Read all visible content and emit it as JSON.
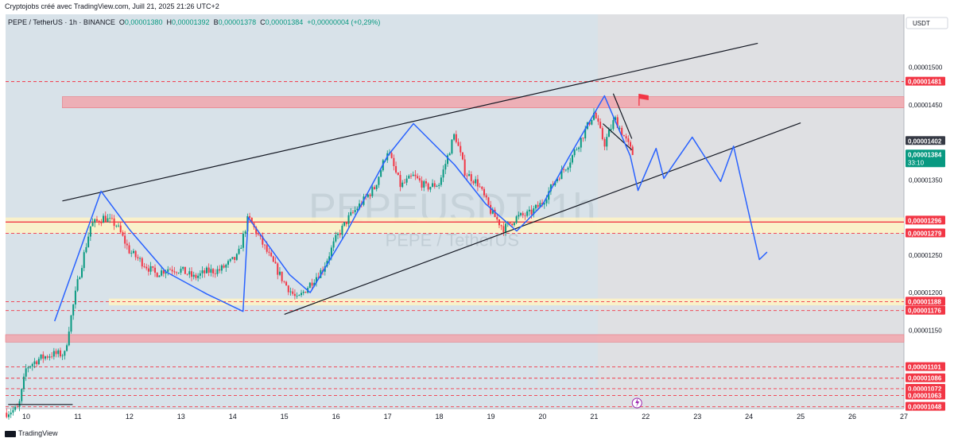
{
  "header": {
    "attribution": "Cryptojobs créé avec TradingView.com, Juill 21, 2025 21:26 UTC+2",
    "symbol": "PEPE / TetherUS · 1h · BINANCE",
    "o_label": "O",
    "o_value": "0,00001380",
    "h_label": "H",
    "h_value": "0,00001392",
    "b_label": "B",
    "b_value": "0,00001378",
    "c_label": "C",
    "c_value": "0,00001384",
    "change": "+0,00000004 (+0,29%)"
  },
  "footer": {
    "brand": "TradingView"
  },
  "colors": {
    "up": "#089981",
    "down": "#f23645",
    "pattern": "#2962ff",
    "trend": "#131722",
    "red_zone": "#f2a3a9",
    "yellow_zone": "#fff3c4",
    "history_shade": "#d8e2e9",
    "level_line": "#f23645"
  },
  "chart_data": {
    "type": "candlestick",
    "title": "",
    "watermark_ticker": "PEPEUSDT, 1h",
    "watermark_name": "PEPE / TetherUS",
    "currency_button": "USDT",
    "ylim": [
      1.0455e-05,
      1.5706e-05
    ],
    "xlim": [
      9.6,
      27.0
    ],
    "grid": false,
    "x_ticks": [
      {
        "value": 10,
        "label": "10"
      },
      {
        "value": 11,
        "label": "11"
      },
      {
        "value": 12,
        "label": "12"
      },
      {
        "value": 13,
        "label": "13"
      },
      {
        "value": 14,
        "label": "14"
      },
      {
        "value": 15,
        "label": "15"
      },
      {
        "value": 16,
        "label": "16"
      },
      {
        "value": 17,
        "label": "17"
      },
      {
        "value": 18,
        "label": "18"
      },
      {
        "value": 19,
        "label": "19"
      },
      {
        "value": 20,
        "label": "20"
      },
      {
        "value": 21,
        "label": "21"
      },
      {
        "value": 22,
        "label": "22"
      },
      {
        "value": 23,
        "label": "23"
      },
      {
        "value": 24,
        "label": "24"
      },
      {
        "value": 25,
        "label": "25"
      },
      {
        "value": 26,
        "label": "26"
      },
      {
        "value": 27,
        "label": "27"
      }
    ],
    "y_ticks": [
      {
        "value": 1.5e-05,
        "label": "0,00001500"
      },
      {
        "value": 1.45e-05,
        "label": "0,00001450"
      },
      {
        "value": 1.35e-05,
        "label": "0,00001350"
      },
      {
        "value": 1.25e-05,
        "label": "0,00001250"
      },
      {
        "value": 1.2e-05,
        "label": "0,00001200"
      },
      {
        "value": 1.15e-05,
        "label": "0,00001150"
      }
    ],
    "price_labels": [
      {
        "value": 1.481e-05,
        "label": "0,00001481",
        "kind": "level"
      },
      {
        "value": 1.402e-05,
        "label": "0,00001402",
        "kind": "dark"
      },
      {
        "value": 1.384e-05,
        "label": "0,00001384",
        "sub": "33:10",
        "kind": "last"
      },
      {
        "value": 1.296e-05,
        "label": "0,00001296",
        "kind": "level"
      },
      {
        "value": 1.279e-05,
        "label": "0,00001279",
        "kind": "level"
      },
      {
        "value": 1.188e-05,
        "label": "0,00001188",
        "kind": "level"
      },
      {
        "value": 1.176e-05,
        "label": "0,00001176",
        "kind": "level"
      },
      {
        "value": 1.101e-05,
        "label": "0,00001101",
        "kind": "level"
      },
      {
        "value": 1.086e-05,
        "label": "0,00001086",
        "kind": "level"
      },
      {
        "value": 1.072e-05,
        "label": "0,00001072",
        "kind": "level"
      },
      {
        "value": 1.063e-05,
        "label": "0,00001063",
        "kind": "level"
      },
      {
        "value": 1.048e-05,
        "label": "0,00001048",
        "kind": "level"
      }
    ],
    "history_end_x": 21.07,
    "zones": [
      {
        "y1": 1.461e-05,
        "y2": 1.446e-05,
        "x1": 10.7,
        "x2": 27.0,
        "color": "red"
      },
      {
        "y1": 1.3e-05,
        "y2": 1.279e-05,
        "x1": 9.6,
        "x2": 27.0,
        "color": "yellow"
      },
      {
        "y1": 1.192e-05,
        "y2": 1.183e-05,
        "x1": 11.6,
        "x2": 27.0,
        "color": "yellow"
      },
      {
        "y1": 1.144e-05,
        "y2": 1.134e-05,
        "x1": 9.6,
        "x2": 27.0,
        "color": "red"
      }
    ],
    "level_lines": [
      {
        "y": 1.481e-05,
        "style": "dashed"
      },
      {
        "y": 1.294e-05,
        "style": "solid"
      },
      {
        "y": 1.279e-05,
        "style": "dashed"
      },
      {
        "y": 1.188e-05,
        "style": "dashed"
      },
      {
        "y": 1.176e-05,
        "style": "dashed"
      },
      {
        "y": 1.101e-05,
        "style": "dashed"
      },
      {
        "y": 1.086e-05,
        "style": "dashed"
      },
      {
        "y": 1.072e-05,
        "style": "dashed"
      },
      {
        "y": 1.063e-05,
        "style": "dashed"
      },
      {
        "y": 1.048e-05,
        "style": "dashed"
      }
    ],
    "trend_lines": [
      {
        "points": [
          [
            10.7,
            1.322e-05
          ],
          [
            24.17,
            1.532e-05
          ]
        ]
      },
      {
        "points": [
          [
            15.0,
            1.171e-05
          ],
          [
            25.0,
            1.426e-05
          ]
        ]
      },
      {
        "points": [
          [
            9.65,
            1.051e-05
          ],
          [
            10.9,
            1.051e-05
          ]
        ]
      },
      {
        "points": [
          [
            21.37,
            1.465e-05
          ],
          [
            21.73,
            1.405e-05
          ]
        ]
      },
      {
        "points": [
          [
            21.17,
            1.425e-05
          ],
          [
            21.73,
            1.39e-05
          ]
        ]
      }
    ],
    "pattern_path": [
      [
        10.55,
        1.162e-05
      ],
      [
        11.45,
        1.335e-05
      ],
      [
        12.0,
        1.284e-05
      ],
      [
        12.7,
        1.228e-05
      ],
      [
        13.5,
        1.198e-05
      ],
      [
        14.2,
        1.175e-05
      ],
      [
        14.3,
        1.3e-05
      ],
      [
        15.1,
        1.224e-05
      ],
      [
        15.5,
        1.2e-05
      ],
      [
        16.2,
        1.28e-05
      ],
      [
        17.0,
        1.382e-05
      ],
      [
        17.5,
        1.425e-05
      ],
      [
        18.3,
        1.37e-05
      ],
      [
        18.9,
        1.318e-05
      ],
      [
        19.5,
        1.282e-05
      ],
      [
        20.0,
        1.317e-05
      ],
      [
        20.5,
        1.379e-05
      ],
      [
        21.2,
        1.462e-05
      ],
      [
        21.7,
        1.382e-05
      ],
      [
        21.85,
        1.336e-05
      ],
      [
        22.2,
        1.392e-05
      ],
      [
        22.35,
        1.352e-05
      ],
      [
        22.9,
        1.407e-05
      ],
      [
        23.45,
        1.348e-05
      ],
      [
        23.7,
        1.395e-05
      ],
      [
        24.2,
        1.244e-05
      ],
      [
        24.35,
        1.254e-05
      ]
    ],
    "flag": {
      "x": 21.87,
      "y": 1.452e-05
    },
    "candle_anchors": [
      [
        9.62,
        1.04e-05
      ],
      [
        9.85,
        1.046e-05
      ],
      [
        10.0,
        1.1e-05
      ],
      [
        10.25,
        1.112e-05
      ],
      [
        10.5,
        1.118e-05
      ],
      [
        10.75,
        1.118e-05
      ],
      [
        10.82,
        1.15e-05
      ],
      [
        11.0,
        1.215e-05
      ],
      [
        11.25,
        1.29e-05
      ],
      [
        11.5,
        1.3e-05
      ],
      [
        11.75,
        1.29e-05
      ],
      [
        12.0,
        1.255e-05
      ],
      [
        12.25,
        1.24e-05
      ],
      [
        12.5,
        1.225e-05
      ],
      [
        12.75,
        1.232e-05
      ],
      [
        13.0,
        1.23e-05
      ],
      [
        13.25,
        1.22e-05
      ],
      [
        13.5,
        1.228e-05
      ],
      [
        13.75,
        1.23e-05
      ],
      [
        14.1,
        1.248e-05
      ],
      [
        14.3,
        1.3e-05
      ],
      [
        14.5,
        1.275e-05
      ],
      [
        14.75,
        1.243e-05
      ],
      [
        15.0,
        1.213e-05
      ],
      [
        15.25,
        1.19e-05
      ],
      [
        15.5,
        1.212e-05
      ],
      [
        15.75,
        1.232e-05
      ],
      [
        16.0,
        1.272e-05
      ],
      [
        16.25,
        1.3e-05
      ],
      [
        16.5,
        1.32e-05
      ],
      [
        16.75,
        1.34e-05
      ],
      [
        17.0,
        1.39e-05
      ],
      [
        17.25,
        1.342e-05
      ],
      [
        17.5,
        1.355e-05
      ],
      [
        17.75,
        1.34e-05
      ],
      [
        18.0,
        1.345e-05
      ],
      [
        18.3,
        1.412e-05
      ],
      [
        18.5,
        1.36e-05
      ],
      [
        18.75,
        1.345e-05
      ],
      [
        19.0,
        1.308e-05
      ],
      [
        19.25,
        1.285e-05
      ],
      [
        19.5,
        1.3e-05
      ],
      [
        19.75,
        1.305e-05
      ],
      [
        20.0,
        1.32e-05
      ],
      [
        20.25,
        1.35e-05
      ],
      [
        20.5,
        1.372e-05
      ],
      [
        20.75,
        1.405e-05
      ],
      [
        21.0,
        1.44e-05
      ],
      [
        21.1,
        1.418e-05
      ],
      [
        21.2,
        1.398e-05
      ],
      [
        21.4,
        1.432e-05
      ],
      [
        21.6,
        1.405e-05
      ],
      [
        21.75,
        1.384e-05
      ]
    ]
  }
}
